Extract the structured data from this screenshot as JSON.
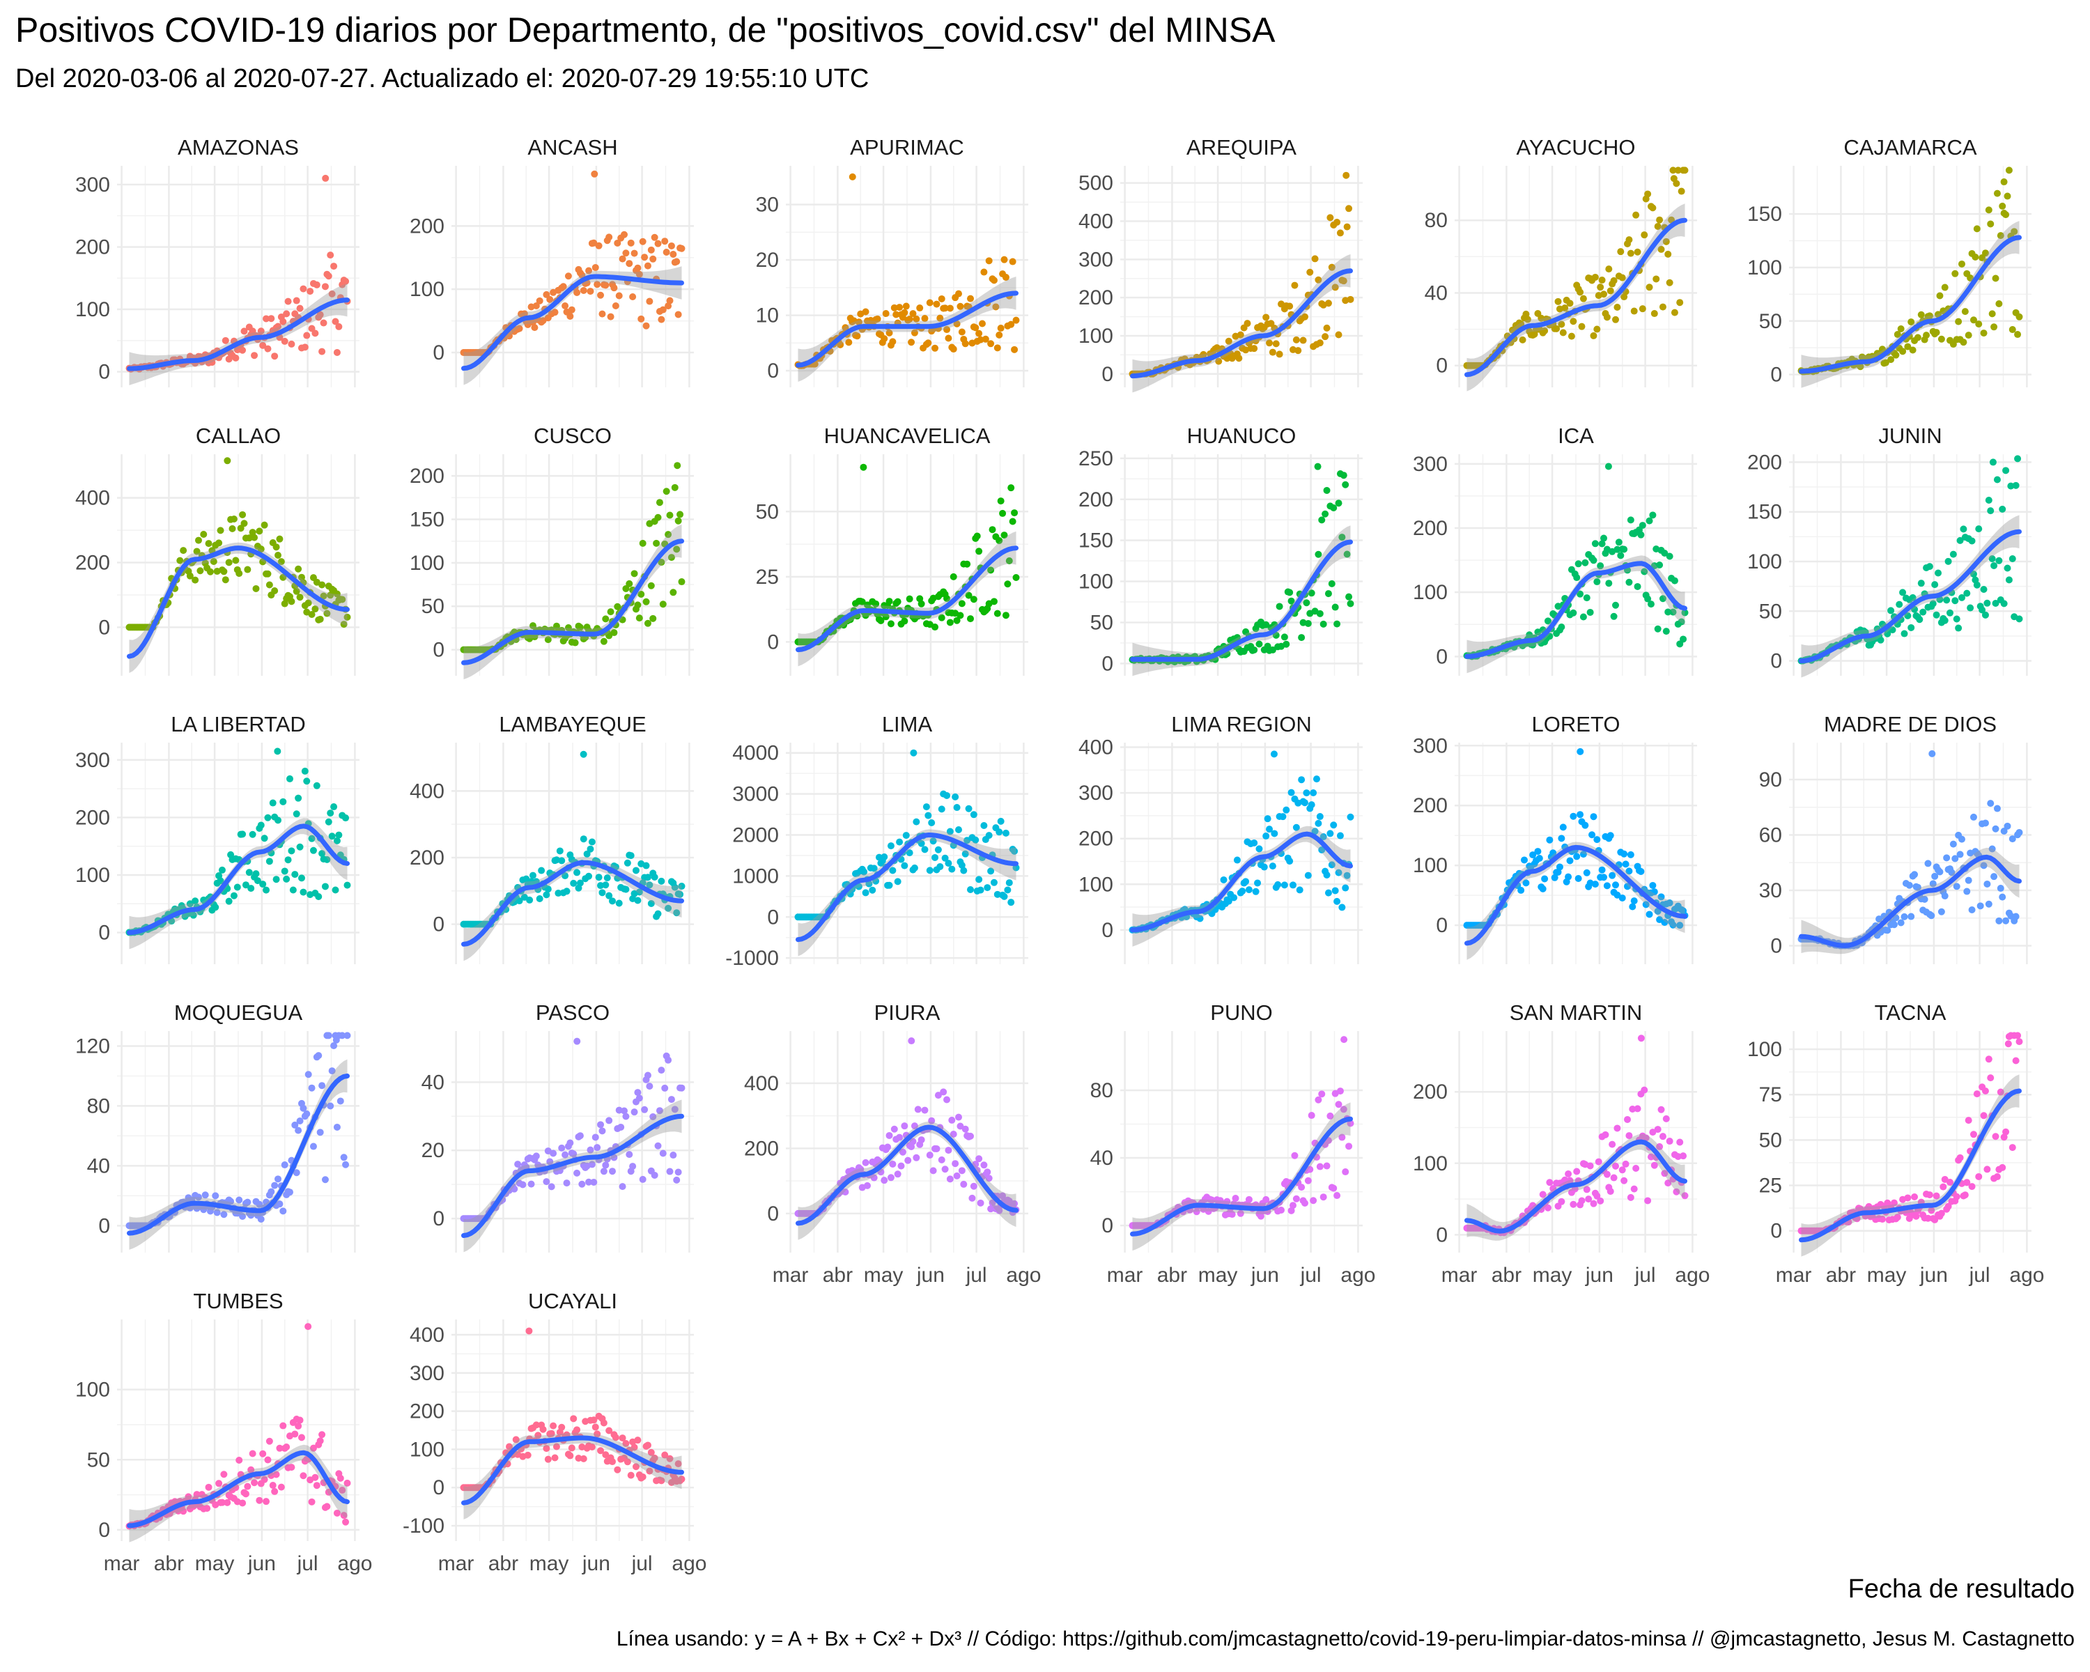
{
  "title": "Positivos COVID-19 diarios por Departmento, de \"positivos_covid.csv\" del MINSA",
  "subtitle": "Del 2020-03-06 al 2020-07-27. Actualizado el: 2020-07-29 19:55:10 UTC",
  "xlabel": "Fecha de resultado",
  "caption": "Línea usando: y = A + Bx + Cx² + Dx³ // Código: https://github.com/jmcastagnetto/covid-19-peru-limpiar-datos-minsa // @jmcastagnetto, Jesus M. Castagnetto",
  "chart_data": {
    "type": "scatter",
    "layout": "facet-wrap",
    "x_range": [
      "2020-03-06",
      "2020-07-27"
    ],
    "x_tick_labels": [
      "mar",
      "abr",
      "may",
      "jun",
      "jul",
      "ago"
    ],
    "x_tick_dates": [
      "2020-03-01",
      "2020-04-01",
      "2020-05-01",
      "2020-06-01",
      "2020-07-01",
      "2020-08-01"
    ],
    "grid": true,
    "legend": "none",
    "trend_line": "cubic polynomial fit with confidence band",
    "trend_color": "#3366ff",
    "panels": [
      {
        "name": "AMAZONAS",
        "color": "#f8766d",
        "yticks": [
          0,
          100,
          200,
          300
        ],
        "ylim": [
          -25,
          330
        ],
        "trend": [
          [
            0,
            5
          ],
          [
            0.3,
            18
          ],
          [
            0.6,
            55
          ],
          [
            1,
            115
          ]
        ],
        "peak": [
          0.9,
          310
        ]
      },
      {
        "name": "ANCASH",
        "color": "#f0813f",
        "yticks": [
          0,
          100,
          200
        ],
        "ylim": [
          -55,
          295
        ],
        "trend": [
          [
            0,
            -25
          ],
          [
            0.3,
            55
          ],
          [
            0.6,
            120
          ],
          [
            1,
            110
          ]
        ],
        "peak": [
          0.6,
          282
        ]
      },
      {
        "name": "APURIMAC",
        "color": "#e18a00",
        "yticks": [
          0,
          10,
          20,
          30
        ],
        "ylim": [
          -3,
          37
        ],
        "trend": [
          [
            0,
            1
          ],
          [
            0.3,
            8
          ],
          [
            0.6,
            8
          ],
          [
            1,
            14
          ]
        ],
        "peak": [
          0.25,
          35
        ]
      },
      {
        "name": "AREQUIPA",
        "color": "#cd9600",
        "yticks": [
          0,
          100,
          200,
          300,
          400,
          500
        ],
        "ylim": [
          -35,
          545
        ],
        "trend": [
          [
            0,
            -5
          ],
          [
            0.3,
            35
          ],
          [
            0.6,
            100
          ],
          [
            1,
            270
          ]
        ],
        "peak": [
          0.98,
          520
        ]
      },
      {
        "name": "AYACUCHO",
        "color": "#b79f00",
        "yticks": [
          0,
          40,
          80
        ],
        "ylim": [
          -12,
          110
        ],
        "trend": [
          [
            0,
            -5
          ],
          [
            0.3,
            22
          ],
          [
            0.6,
            33
          ],
          [
            1,
            80
          ]
        ],
        "peak": [
          0.95,
          103
        ]
      },
      {
        "name": "CAJAMARCA",
        "color": "#9da700",
        "yticks": [
          0,
          50,
          100,
          150
        ],
        "ylim": [
          -12,
          195
        ],
        "trend": [
          [
            0,
            3
          ],
          [
            0.3,
            12
          ],
          [
            0.6,
            50
          ],
          [
            1,
            128
          ]
        ],
        "peak": [
          0.93,
          180
        ]
      },
      {
        "name": "CALLAO",
        "color": "#7cae00",
        "yticks": [
          0,
          200,
          400
        ],
        "ylim": [
          -150,
          535
        ],
        "trend": [
          [
            0,
            -90
          ],
          [
            0.3,
            210
          ],
          [
            0.5,
            245
          ],
          [
            1,
            55
          ]
        ],
        "peak": [
          0.45,
          515
        ]
      },
      {
        "name": "CUSCO",
        "color": "#5bb300",
        "yticks": [
          0,
          50,
          100,
          150,
          200
        ],
        "ylim": [
          -30,
          225
        ],
        "trend": [
          [
            0,
            -15
          ],
          [
            0.3,
            20
          ],
          [
            0.6,
            18
          ],
          [
            1,
            125
          ]
        ],
        "peak": [
          0.98,
          212
        ]
      },
      {
        "name": "HUANCAVELICA",
        "color": "#0cb702",
        "yticks": [
          0,
          25,
          50
        ],
        "ylim": [
          -13,
          72
        ],
        "trend": [
          [
            0,
            -3
          ],
          [
            0.3,
            12
          ],
          [
            0.6,
            11
          ],
          [
            1,
            36
          ]
        ],
        "peak": [
          0.3,
          67
        ]
      },
      {
        "name": "HUANUCO",
        "color": "#00ba38",
        "yticks": [
          0,
          50,
          100,
          150,
          200,
          250
        ],
        "ylim": [
          -15,
          255
        ],
        "trend": [
          [
            0,
            5
          ],
          [
            0.3,
            5
          ],
          [
            0.6,
            35
          ],
          [
            1,
            148
          ]
        ],
        "peak": [
          0.85,
          240
        ]
      },
      {
        "name": "ICA",
        "color": "#00be67",
        "yticks": [
          0,
          100,
          200,
          300
        ],
        "ylim": [
          -30,
          315
        ],
        "trend": [
          [
            0,
            0
          ],
          [
            0.3,
            25
          ],
          [
            0.6,
            130
          ],
          [
            0.8,
            145
          ],
          [
            1,
            75
          ]
        ],
        "peak": [
          0.65,
          296
        ]
      },
      {
        "name": "JUNIN",
        "color": "#00c08b",
        "yticks": [
          0,
          50,
          100,
          150,
          200
        ],
        "ylim": [
          -15,
          208
        ],
        "trend": [
          [
            0,
            0
          ],
          [
            0.3,
            25
          ],
          [
            0.6,
            65
          ],
          [
            1,
            130
          ]
        ],
        "peak": [
          0.88,
          200
        ]
      },
      {
        "name": "LA LIBERTAD",
        "color": "#00c1a9",
        "yticks": [
          0,
          100,
          200,
          300
        ],
        "ylim": [
          -55,
          330
        ],
        "trend": [
          [
            0,
            0
          ],
          [
            0.3,
            40
          ],
          [
            0.6,
            140
          ],
          [
            0.8,
            185
          ],
          [
            1,
            120
          ]
        ],
        "peak": [
          0.68,
          315
        ]
      },
      {
        "name": "LAMBAYEQUE",
        "color": "#00bfc4",
        "yticks": [
          0,
          200,
          400
        ],
        "ylim": [
          -120,
          545
        ],
        "trend": [
          [
            0,
            -60
          ],
          [
            0.3,
            110
          ],
          [
            0.55,
            185
          ],
          [
            1,
            70
          ]
        ],
        "peak": [
          0.55,
          510
        ]
      },
      {
        "name": "LIMA",
        "color": "#00bbdb",
        "yticks": [
          -1000,
          0,
          1000,
          2000,
          3000,
          4000
        ],
        "ylim": [
          -1150,
          4250
        ],
        "trend": [
          [
            0,
            -550
          ],
          [
            0.3,
            900
          ],
          [
            0.6,
            2000
          ],
          [
            1,
            1300
          ]
        ],
        "peak": [
          0.53,
          4000
        ]
      },
      {
        "name": "LIMA REGION",
        "color": "#00b4f0",
        "yticks": [
          0,
          100,
          200,
          300,
          400
        ],
        "ylim": [
          -75,
          410
        ],
        "trend": [
          [
            0,
            0
          ],
          [
            0.3,
            40
          ],
          [
            0.6,
            160
          ],
          [
            0.8,
            210
          ],
          [
            1,
            140
          ]
        ],
        "peak": [
          0.65,
          385
        ]
      },
      {
        "name": "LORETO",
        "color": "#00a9ff",
        "yticks": [
          0,
          100,
          200,
          300
        ],
        "ylim": [
          -65,
          305
        ],
        "trend": [
          [
            0,
            -30
          ],
          [
            0.3,
            90
          ],
          [
            0.5,
            130
          ],
          [
            1,
            15
          ]
        ],
        "peak": [
          0.52,
          290
        ]
      },
      {
        "name": "MADRE DE DIOS",
        "color": "#619cff",
        "yticks": [
          0,
          30,
          60,
          90
        ],
        "ylim": [
          -10,
          110
        ],
        "trend": [
          [
            0,
            5
          ],
          [
            0.2,
            0
          ],
          [
            0.6,
            30
          ],
          [
            0.85,
            48
          ],
          [
            1,
            35
          ]
        ],
        "peak": [
          0.6,
          104
        ]
      },
      {
        "name": "MOQUEGUA",
        "color": "#8494ff",
        "yticks": [
          0,
          40,
          80,
          120
        ],
        "ylim": [
          -18,
          130
        ],
        "trend": [
          [
            0,
            -5
          ],
          [
            0.3,
            15
          ],
          [
            0.6,
            10
          ],
          [
            1,
            100
          ]
        ],
        "peak": [
          0.95,
          124
        ]
      },
      {
        "name": "PASCO",
        "color": "#a58aff",
        "yticks": [
          0,
          20,
          40
        ],
        "ylim": [
          -10,
          55
        ],
        "trend": [
          [
            0,
            -5
          ],
          [
            0.3,
            14
          ],
          [
            0.6,
            18
          ],
          [
            1,
            30
          ]
        ],
        "peak": [
          0.52,
          52
        ]
      },
      {
        "name": "PIURA",
        "color": "#c77cff",
        "yticks": [
          0,
          200,
          400
        ],
        "ylim": [
          -120,
          560
        ],
        "trend": [
          [
            0,
            -30
          ],
          [
            0.3,
            120
          ],
          [
            0.6,
            265
          ],
          [
            1,
            10
          ]
        ],
        "peak": [
          0.52,
          530
        ]
      },
      {
        "name": "PUNO",
        "color": "#df70f8",
        "yticks": [
          0,
          40,
          80
        ],
        "ylim": [
          -16,
          115
        ],
        "trend": [
          [
            0,
            -5
          ],
          [
            0.3,
            12
          ],
          [
            0.6,
            10
          ],
          [
            1,
            63
          ]
        ],
        "peak": [
          0.97,
          110
        ]
      },
      {
        "name": "SAN MARTIN",
        "color": "#f066ea",
        "yticks": [
          0,
          100,
          200
        ],
        "ylim": [
          -25,
          285
        ],
        "trend": [
          [
            0,
            20
          ],
          [
            0.15,
            5
          ],
          [
            0.5,
            70
          ],
          [
            0.8,
            130
          ],
          [
            1,
            75
          ]
        ],
        "peak": [
          0.8,
          275
        ]
      },
      {
        "name": "TACNA",
        "color": "#fb61d7",
        "yticks": [
          0,
          25,
          50,
          75,
          100
        ],
        "ylim": [
          -12,
          110
        ],
        "trend": [
          [
            0,
            -5
          ],
          [
            0.3,
            10
          ],
          [
            0.6,
            14
          ],
          [
            1,
            77
          ]
        ],
        "peak": [
          0.95,
          103
        ]
      },
      {
        "name": "TUMBES",
        "color": "#ff65bd",
        "yticks": [
          0,
          50,
          100
        ],
        "ylim": [
          -8,
          150
        ],
        "trend": [
          [
            0,
            3
          ],
          [
            0.3,
            20
          ],
          [
            0.6,
            40
          ],
          [
            0.8,
            55
          ],
          [
            1,
            20
          ]
        ],
        "peak": [
          0.82,
          145
        ]
      },
      {
        "name": "UCAYALI",
        "color": "#ff6c91",
        "yticks": [
          -100,
          0,
          100,
          200,
          300,
          400
        ],
        "ylim": [
          -140,
          440
        ],
        "trend": [
          [
            0,
            -40
          ],
          [
            0.3,
            120
          ],
          [
            0.55,
            130
          ],
          [
            1,
            40
          ]
        ],
        "peak": [
          0.3,
          410
        ]
      }
    ]
  }
}
